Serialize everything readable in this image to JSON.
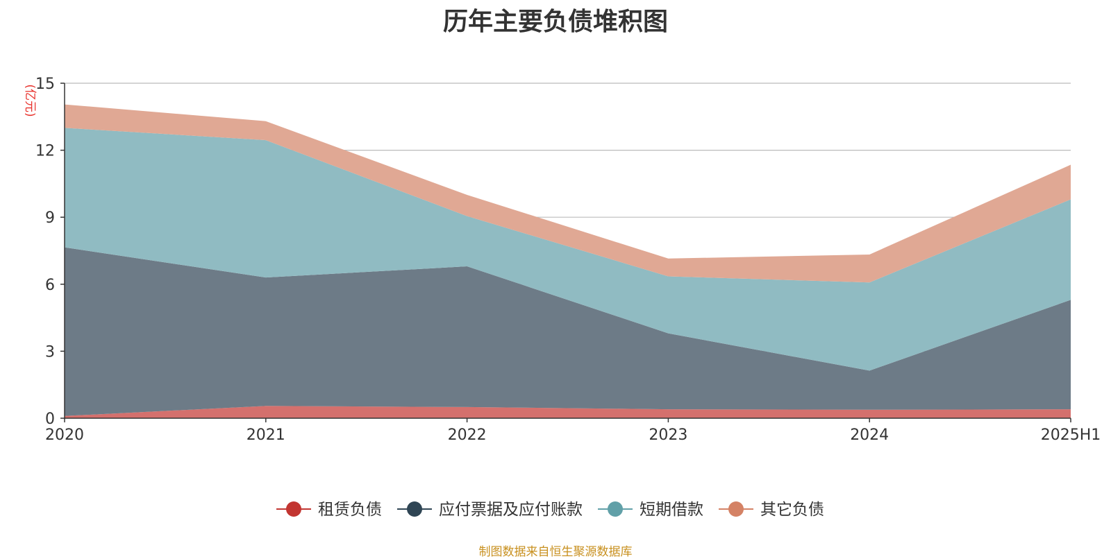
{
  "chart_data": {
    "type": "area",
    "stacked": true,
    "title": "历年主要负债堆积图",
    "ylabel": "(亿元)",
    "categories": [
      "2020",
      "2021",
      "2022",
      "2023",
      "2024",
      "2025H1"
    ],
    "ylim": [
      0,
      15
    ],
    "yticks": [
      0,
      3,
      6,
      9,
      12,
      15
    ],
    "grid": true,
    "legend_position": "bottom",
    "series": [
      {
        "name": "租赁负债",
        "color": "#c23531",
        "fill": "#d4706d",
        "values": [
          0.1,
          0.55,
          0.5,
          0.4,
          0.38,
          0.4
        ]
      },
      {
        "name": "应付票据及应付账款",
        "color": "#2f4554",
        "fill": "#6d7b87",
        "values": [
          7.55,
          5.75,
          6.3,
          3.4,
          1.75,
          4.9
        ]
      },
      {
        "name": "短期借款",
        "color": "#61a0a8",
        "fill": "#90bbc2",
        "values": [
          5.35,
          6.15,
          2.25,
          2.55,
          3.95,
          4.5
        ]
      },
      {
        "name": "其它负债",
        "color": "#d48265",
        "fill": "#e0a894",
        "values": [
          1.05,
          0.85,
          0.95,
          0.8,
          1.25,
          1.55
        ]
      }
    ]
  },
  "source": "制图数据来自恒生聚源数据库"
}
